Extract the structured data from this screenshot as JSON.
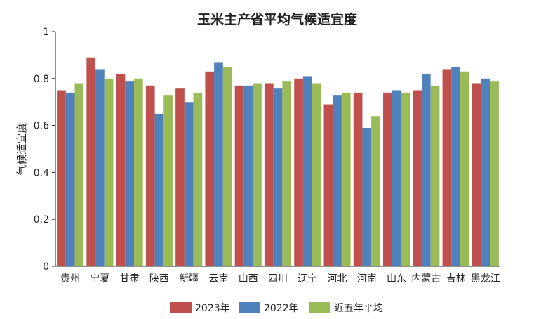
{
  "chart_data": {
    "type": "bar",
    "title": "玉米主产省平均气候适宜度",
    "xlabel": "",
    "ylabel": "气候适宜度",
    "ylim": [
      0,
      1
    ],
    "yticks": [
      "0",
      "0.2",
      "0.4",
      "0.6",
      "0.8",
      "1"
    ],
    "grid": false,
    "legend_position": "bottom",
    "categories": [
      "贵州",
      "宁夏",
      "甘肃",
      "陕西",
      "新疆",
      "云南",
      "山西",
      "四川",
      "辽宁",
      "河北",
      "河南",
      "山东",
      "内蒙古",
      "吉林",
      "黑龙江"
    ],
    "series": [
      {
        "name": "2023年",
        "color": "#c0504d",
        "values": [
          0.75,
          0.89,
          0.82,
          0.77,
          0.76,
          0.83,
          0.77,
          0.78,
          0.8,
          0.69,
          0.74,
          0.74,
          0.75,
          0.84,
          0.78
        ]
      },
      {
        "name": "2022年",
        "color": "#4f81bd",
        "values": [
          0.74,
          0.84,
          0.79,
          0.65,
          0.7,
          0.87,
          0.77,
          0.76,
          0.81,
          0.73,
          0.59,
          0.75,
          0.82,
          0.85,
          0.8
        ]
      },
      {
        "name": "近五年平均",
        "color": "#9bbb59",
        "values": [
          0.78,
          0.8,
          0.8,
          0.73,
          0.74,
          0.85,
          0.78,
          0.79,
          0.78,
          0.74,
          0.64,
          0.74,
          0.77,
          0.83,
          0.79
        ]
      }
    ]
  }
}
